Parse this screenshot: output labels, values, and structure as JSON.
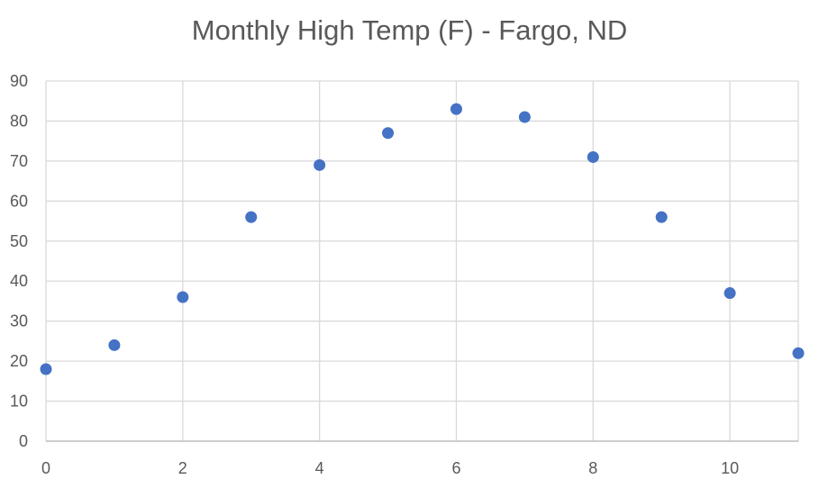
{
  "chart_data": {
    "type": "scatter",
    "title": "Monthly High Temp (F) - Fargo, ND",
    "xlabel": "",
    "ylabel": "",
    "xlim": [
      0,
      11
    ],
    "ylim": [
      0,
      90
    ],
    "xticks": [
      0,
      2,
      4,
      6,
      8,
      10
    ],
    "yticks": [
      0,
      10,
      20,
      30,
      40,
      50,
      60,
      70,
      80,
      90
    ],
    "grid": true,
    "legend": "none",
    "marker_color": "#4472C4",
    "series": [
      {
        "x": [
          0,
          1,
          2,
          3,
          4,
          5,
          6,
          7,
          8,
          9,
          10,
          11
        ],
        "y": [
          18,
          24,
          36,
          56,
          69,
          77,
          83,
          81,
          71,
          56,
          37,
          22
        ]
      }
    ]
  }
}
